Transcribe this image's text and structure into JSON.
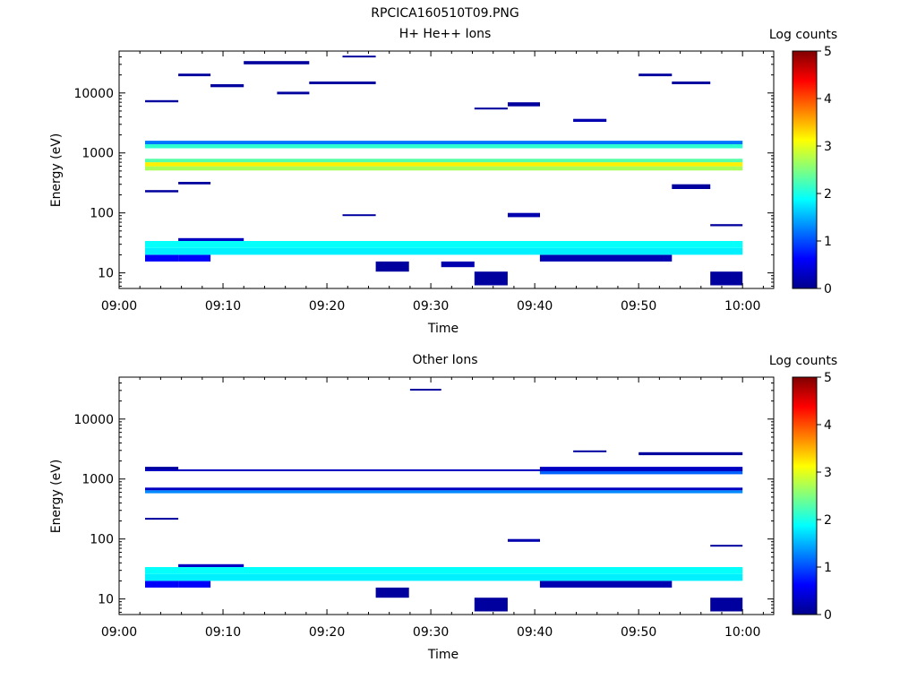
{
  "figure_title": "RPCICA160510T09.PNG",
  "chart_data": [
    {
      "type": "heatmap",
      "title": "H+ He++ Ions",
      "xlabel": "Time",
      "ylabel": "Energy (eV)",
      "x_ticks": [
        "09:00",
        "09:10",
        "09:20",
        "09:30",
        "09:40",
        "09:50",
        "10:00"
      ],
      "xlim_minutes": [
        0,
        63
      ],
      "y_scale": "log",
      "y_ticks": [
        "10",
        "100",
        "1000",
        "10000"
      ],
      "ylim": [
        5.5,
        50000
      ],
      "colorbar": {
        "label": "Log counts",
        "ticks": [
          "0",
          "1",
          "2",
          "3",
          "4",
          "5"
        ],
        "range": [
          0,
          5
        ],
        "colormap": "jet"
      },
      "bins": [
        {
          "t0": 2.5,
          "t1": 5.7,
          "e0": 15.5,
          "e1": 20,
          "v": 0.6
        },
        {
          "t0": 5.7,
          "t1": 8.8,
          "e0": 15.5,
          "e1": 20,
          "v": 0.6
        },
        {
          "t0": 2.5,
          "t1": 60,
          "e0": 20,
          "e1": 26,
          "v": 1.8
        },
        {
          "t0": 2.5,
          "t1": 60,
          "e0": 26,
          "e1": 34,
          "v": 1.9
        },
        {
          "t0": 5.7,
          "t1": 12,
          "e0": 34,
          "e1": 38,
          "v": 0.3
        },
        {
          "t0": 24.7,
          "t1": 27.9,
          "e0": 10.5,
          "e1": 15.5,
          "v": 0.1
        },
        {
          "t0": 31,
          "t1": 34.2,
          "e0": 12.5,
          "e1": 15.5,
          "v": 0.2
        },
        {
          "t0": 34.2,
          "t1": 37.4,
          "e0": 6.2,
          "e1": 10.5,
          "v": 0.1
        },
        {
          "t0": 56.9,
          "t1": 60,
          "e0": 6.2,
          "e1": 10.5,
          "v": 0.1
        },
        {
          "t0": 40.5,
          "t1": 53.2,
          "e0": 15.5,
          "e1": 20,
          "v": 0.2
        },
        {
          "t0": 2.5,
          "t1": 60,
          "e0": 510,
          "e1": 600,
          "v": 2.7
        },
        {
          "t0": 2.5,
          "t1": 60,
          "e0": 600,
          "e1": 700,
          "v": 3.2
        },
        {
          "t0": 2.5,
          "t1": 60,
          "e0": 700,
          "e1": 800,
          "v": 2.3
        },
        {
          "t0": 2.5,
          "t1": 60,
          "e0": 1200,
          "e1": 1400,
          "v": 2.1
        },
        {
          "t0": 2.5,
          "t1": 60,
          "e0": 1400,
          "e1": 1600,
          "v": 1.2
        },
        {
          "t0": 2.5,
          "t1": 5.7,
          "e0": 7000,
          "e1": 7600,
          "v": 0.1
        },
        {
          "t0": 5.7,
          "t1": 8.8,
          "e0": 19000,
          "e1": 21000,
          "v": 0.1
        },
        {
          "t0": 8.8,
          "t1": 12,
          "e0": 12500,
          "e1": 14000,
          "v": 0.1
        },
        {
          "t0": 12,
          "t1": 18.3,
          "e0": 30000,
          "e1": 34000,
          "v": 0.1
        },
        {
          "t0": 15.2,
          "t1": 18.3,
          "e0": 9500,
          "e1": 10500,
          "v": 0.1
        },
        {
          "t0": 18.3,
          "t1": 24.7,
          "e0": 14000,
          "e1": 15500,
          "v": 0.1
        },
        {
          "t0": 21.5,
          "t1": 24.7,
          "e0": 40000,
          "e1": 42000,
          "v": 0.1
        },
        {
          "t0": 34.2,
          "t1": 37.4,
          "e0": 5300,
          "e1": 5700,
          "v": 0.1
        },
        {
          "t0": 37.4,
          "t1": 40.5,
          "e0": 6000,
          "e1": 7000,
          "v": 0.1
        },
        {
          "t0": 43.7,
          "t1": 46.9,
          "e0": 3300,
          "e1": 3700,
          "v": 0.2
        },
        {
          "t0": 50,
          "t1": 53.2,
          "e0": 19000,
          "e1": 21000,
          "v": 0.1
        },
        {
          "t0": 53.2,
          "t1": 56.9,
          "e0": 14000,
          "e1": 15500,
          "v": 0.1
        },
        {
          "t0": 2.5,
          "t1": 5.7,
          "e0": 220,
          "e1": 240,
          "v": 0.1
        },
        {
          "t0": 5.7,
          "t1": 8.8,
          "e0": 300,
          "e1": 330,
          "v": 0.1
        },
        {
          "t0": 53.2,
          "t1": 56.9,
          "e0": 250,
          "e1": 300,
          "v": 0.1
        },
        {
          "t0": 37.4,
          "t1": 40.5,
          "e0": 85,
          "e1": 100,
          "v": 0.2
        },
        {
          "t0": 21.5,
          "t1": 24.7,
          "e0": 90,
          "e1": 95,
          "v": 0.1
        },
        {
          "t0": 56.9,
          "t1": 60,
          "e0": 60,
          "e1": 65,
          "v": 0.1
        }
      ]
    },
    {
      "type": "heatmap",
      "title": "Other Ions",
      "xlabel": "Time",
      "ylabel": "Energy (eV)",
      "x_ticks": [
        "09:00",
        "09:10",
        "09:20",
        "09:30",
        "09:40",
        "09:50",
        "10:00"
      ],
      "xlim_minutes": [
        0,
        63
      ],
      "y_scale": "log",
      "y_ticks": [
        "10",
        "100",
        "1000",
        "10000"
      ],
      "ylim": [
        5.5,
        50000
      ],
      "colorbar": {
        "label": "Log counts",
        "ticks": [
          "0",
          "1",
          "2",
          "3",
          "4",
          "5"
        ],
        "range": [
          0,
          5
        ],
        "colormap": "jet"
      },
      "bins": [
        {
          "t0": 2.5,
          "t1": 5.7,
          "e0": 15.5,
          "e1": 20,
          "v": 0.6
        },
        {
          "t0": 5.7,
          "t1": 8.8,
          "e0": 15.5,
          "e1": 20,
          "v": 0.6
        },
        {
          "t0": 2.5,
          "t1": 60,
          "e0": 20,
          "e1": 26,
          "v": 1.8
        },
        {
          "t0": 2.5,
          "t1": 60,
          "e0": 26,
          "e1": 34,
          "v": 1.9
        },
        {
          "t0": 5.7,
          "t1": 12,
          "e0": 34,
          "e1": 38,
          "v": 0.3
        },
        {
          "t0": 24.7,
          "t1": 27.9,
          "e0": 10.5,
          "e1": 15.5,
          "v": 0.1
        },
        {
          "t0": 34.2,
          "t1": 37.4,
          "e0": 6.2,
          "e1": 10.5,
          "v": 0.1
        },
        {
          "t0": 56.9,
          "t1": 60,
          "e0": 6.2,
          "e1": 10.5,
          "v": 0.1
        },
        {
          "t0": 40.5,
          "t1": 53.2,
          "e0": 15.5,
          "e1": 20,
          "v": 0.2
        },
        {
          "t0": 2.5,
          "t1": 60,
          "e0": 580,
          "e1": 650,
          "v": 1.3
        },
        {
          "t0": 2.5,
          "t1": 60,
          "e0": 650,
          "e1": 720,
          "v": 0.3
        },
        {
          "t0": 2.5,
          "t1": 60,
          "e0": 1350,
          "e1": 1450,
          "v": 0.3
        },
        {
          "t0": 2.5,
          "t1": 5.7,
          "e0": 1450,
          "e1": 1600,
          "v": 0.1
        },
        {
          "t0": 40.5,
          "t1": 60,
          "e0": 1200,
          "e1": 1350,
          "v": 1.1
        },
        {
          "t0": 40.5,
          "t1": 60,
          "e0": 1450,
          "e1": 1600,
          "v": 0.3
        },
        {
          "t0": 28,
          "t1": 31,
          "e0": 30000,
          "e1": 32000,
          "v": 0.1
        },
        {
          "t0": 50,
          "t1": 60,
          "e0": 2500,
          "e1": 2800,
          "v": 0.1
        },
        {
          "t0": 43.7,
          "t1": 46.9,
          "e0": 2800,
          "e1": 3000,
          "v": 0.1
        },
        {
          "t0": 2.5,
          "t1": 5.7,
          "e0": 210,
          "e1": 225,
          "v": 0.1
        },
        {
          "t0": 37.4,
          "t1": 40.5,
          "e0": 90,
          "e1": 100,
          "v": 0.2
        },
        {
          "t0": 56.9,
          "t1": 60,
          "e0": 75,
          "e1": 80,
          "v": 0.1
        }
      ]
    }
  ]
}
